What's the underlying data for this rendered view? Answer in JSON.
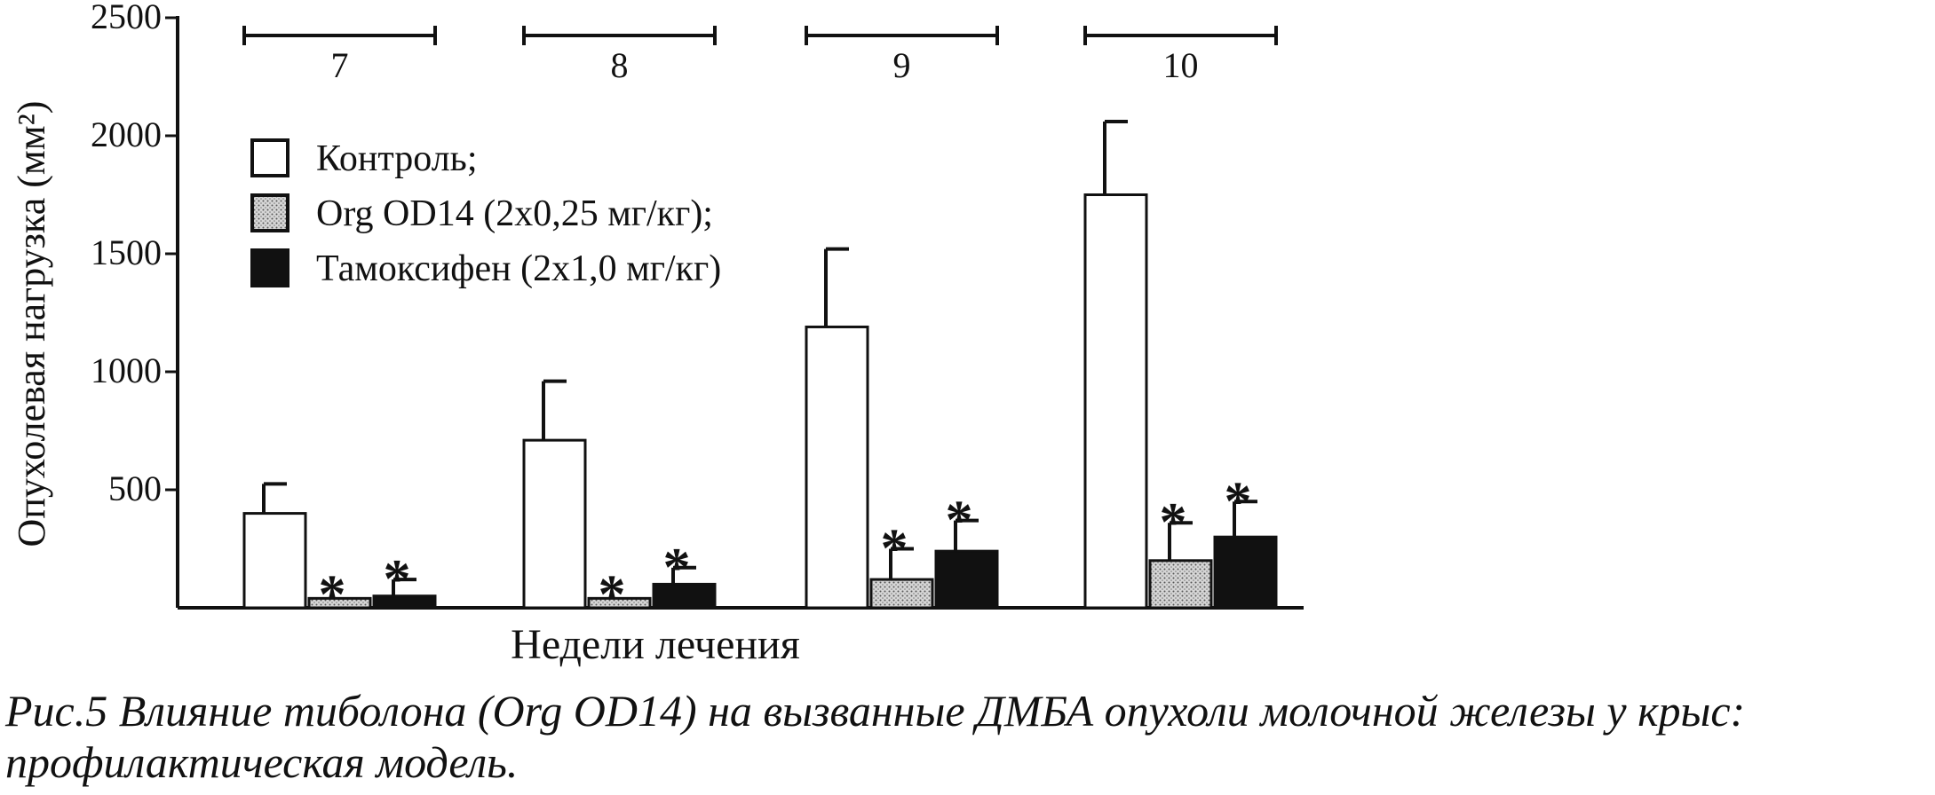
{
  "chart_data": {
    "type": "bar",
    "title": "",
    "ylabel": "Опухолевая нагрузка (мм²)",
    "xlabel": "Недели лечения",
    "ylim": [
      0,
      2500
    ],
    "yticks": [
      500,
      1000,
      1500,
      2000,
      2500
    ],
    "categories": [
      "7",
      "8",
      "9",
      "10"
    ],
    "legend_position": "top-left",
    "grid": false,
    "series": [
      {
        "name": "Контроль;",
        "pattern": "white",
        "values": [
          400,
          710,
          1190,
          1750
        ],
        "errors": [
          125,
          250,
          330,
          310
        ],
        "significant": [
          false,
          false,
          false,
          false
        ]
      },
      {
        "name": "Org OD14 (2х0,25 мг/кг);",
        "pattern": "dotted",
        "values": [
          40,
          40,
          120,
          200
        ],
        "errors": [
          0,
          0,
          130,
          160
        ],
        "significant": [
          true,
          true,
          true,
          true
        ]
      },
      {
        "name": "Тамоксифен (2х1,0 мг/кг)",
        "pattern": "black",
        "values": [
          50,
          100,
          240,
          300
        ],
        "errors": [
          70,
          70,
          130,
          150
        ],
        "significant": [
          true,
          true,
          true,
          true
        ]
      }
    ],
    "significance_mark": "*"
  },
  "caption": "Рис.5 Влияние тиболона (Org OD14) на вызванные ДМБА опухоли молочной железы у крыс: профилактическая модель."
}
